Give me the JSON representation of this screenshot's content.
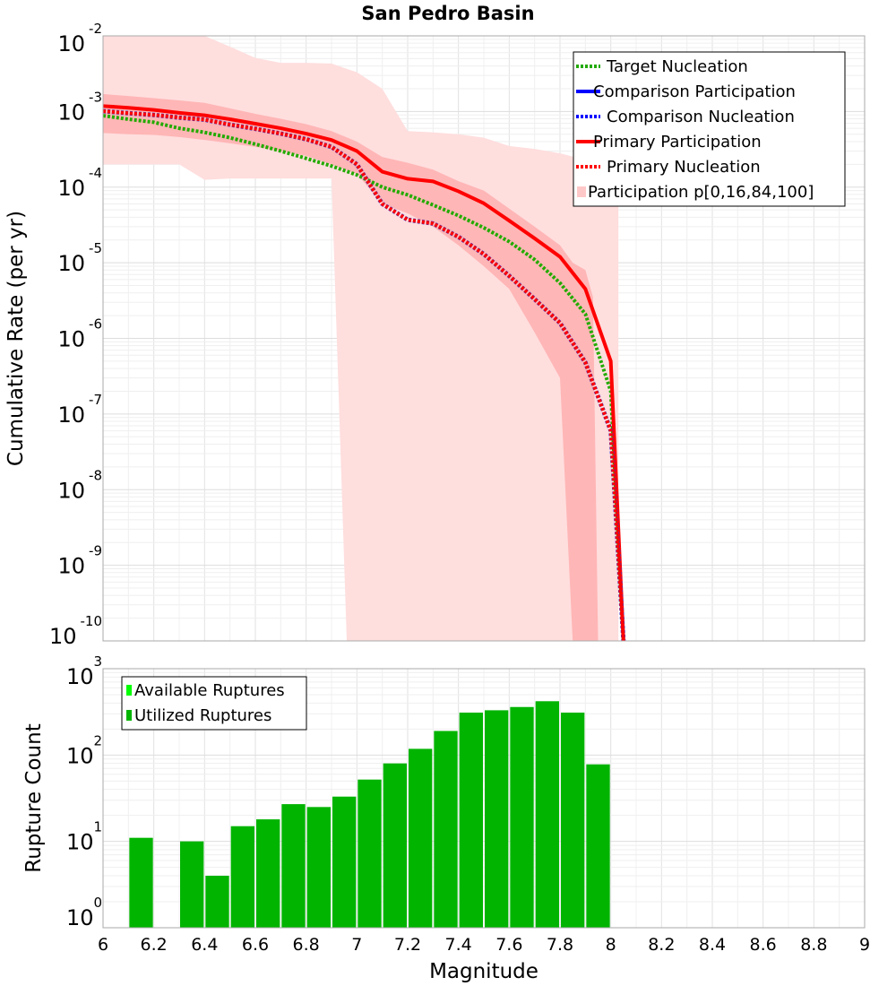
{
  "title": "San Pedro Basin",
  "chart_data": [
    {
      "type": "line",
      "panel": "top",
      "ylabel": "Cumulative Rate (per yr)",
      "xlim": [
        6,
        9
      ],
      "ylim_log10": [
        -10,
        -2
      ],
      "y_tick_exponents": [
        -2,
        -3,
        -4,
        -5,
        -6,
        -7,
        -8,
        -9,
        -10
      ],
      "y_tick_base": "10",
      "legend_position": "top-right",
      "legend": [
        {
          "label": "Target Nucleation",
          "color": "#22aa00",
          "style": "dotted"
        },
        {
          "label": "Comparison Participation",
          "color": "#0000ff",
          "style": "solid"
        },
        {
          "label": "Comparison Nucleation",
          "color": "#0000ff",
          "style": "dotted"
        },
        {
          "label": "Primary Participation",
          "color": "#ff0000",
          "style": "solid"
        },
        {
          "label": "Primary Nucleation",
          "color": "#ff0000",
          "style": "dotted"
        },
        {
          "label": "Participation p[0,16,84,100]",
          "color": "#ffc8c8",
          "style": "band"
        }
      ],
      "x": [
        6.0,
        6.1,
        6.2,
        6.3,
        6.4,
        6.5,
        6.6,
        6.7,
        6.8,
        6.9,
        7.0,
        7.1,
        7.2,
        7.3,
        7.4,
        7.5,
        7.6,
        7.7,
        7.8,
        7.9,
        8.0,
        8.05
      ],
      "series": [
        {
          "name": "Target Nucleation",
          "color": "#22aa00",
          "style": "dotted",
          "values": [
            0.00088,
            0.00079,
            0.00072,
            0.0006,
            0.00053,
            0.00045,
            0.00037,
            0.0003,
            0.00024,
            0.00019,
            0.000145,
            0.0001,
            7.9e-05,
            5.8e-05,
            4.2e-05,
            2.9e-05,
            1.9e-05,
            1.1e-05,
            5.4e-06,
            2.1e-06,
            2e-07,
            1e-10
          ]
        },
        {
          "name": "Primary Participation",
          "color": "#ff0000",
          "style": "solid",
          "values": [
            0.00118,
            0.00112,
            0.00105,
            0.00096,
            0.00089,
            0.00079,
            0.00069,
            0.0006,
            0.00051,
            0.00042,
            0.0003,
            0.00016,
            0.000129,
            0.000119,
            8.8e-05,
            6.1e-05,
            3.6e-05,
            2.1e-05,
            1.2e-05,
            4.5e-06,
            5e-07,
            1e-10
          ]
        },
        {
          "name": "Primary Nucleation",
          "color": "#ff0000",
          "style": "dotted",
          "outline": "#3333cc",
          "values": [
            0.00101,
            0.00095,
            0.0009,
            0.00083,
            0.00078,
            0.00067,
            0.00059,
            0.00051,
            0.00043,
            0.00034,
            0.0002,
            6e-05,
            3.7e-05,
            3.3e-05,
            2.2e-05,
            1.3e-05,
            6.7e-06,
            3.3e-06,
            1.6e-06,
            4.8e-07,
            6e-08,
            1e-10
          ]
        }
      ],
      "bands": [
        {
          "name": "p0-p100",
          "color": "#ffdede",
          "x": [
            6.0,
            6.1,
            6.2,
            6.3,
            6.4,
            6.5,
            6.6,
            6.7,
            6.8,
            6.9,
            6.9,
            6.95,
            6.97
          ],
          "upper": [
            0.01,
            0.01,
            0.01,
            0.01,
            0.01,
            0.0072,
            0.0051,
            0.0044,
            0.0041,
            0.0042,
            0.0042,
            0.0042,
            0.0042
          ],
          "lower": [
            0.0002,
            0.0002,
            0.0002,
            0.0002,
            0.000125,
            0.00013,
            0.00013,
            0.00013,
            0.00013,
            0.00013,
            0.00013,
            1e-10,
            1e-10
          ],
          "x_full": [
            6.0,
            6.1,
            6.2,
            6.3,
            6.4,
            6.5,
            6.6,
            6.7,
            6.8,
            6.9,
            7.0,
            7.1,
            7.2,
            7.3,
            7.4,
            7.5,
            7.6,
            7.7,
            7.8,
            7.9,
            8.0,
            8.03
          ],
          "upper_full": [
            0.01,
            0.01,
            0.01,
            0.01,
            0.01,
            0.0072,
            0.0051,
            0.0044,
            0.0044,
            0.0043,
            0.0033,
            0.002,
            0.00055,
            0.00053,
            0.0005,
            0.00045,
            0.00035,
            0.00032,
            0.00028,
            0.00023,
            0.0002,
            0.00017
          ],
          "lower_knots": [
            [
              6.0,
              0.0002
            ],
            [
              6.1,
              0.0002
            ],
            [
              6.2,
              0.0002
            ],
            [
              6.3,
              0.0002
            ],
            [
              6.4,
              0.000125
            ],
            [
              6.5,
              0.00013
            ],
            [
              6.9,
              0.00013
            ],
            [
              6.96,
              1e-10
            ]
          ]
        },
        {
          "name": "p16-p84",
          "color": "#ffb6b6",
          "x": [
            6.0,
            6.1,
            6.2,
            6.3,
            6.4,
            6.5,
            6.6,
            6.7,
            6.8,
            6.9,
            7.0,
            7.1,
            7.2,
            7.3,
            7.4,
            7.5,
            7.6,
            7.7,
            7.8,
            7.85,
            7.9,
            7.93,
            7.95
          ],
          "upper": [
            0.0017,
            0.0016,
            0.0015,
            0.0014,
            0.0013,
            0.0011,
            0.00093,
            0.0008,
            0.00068,
            0.00055,
            0.0004,
            0.00025,
            0.00021,
            0.00017,
            0.00012,
            9e-05,
            5.2e-05,
            3e-05,
            1.7e-05,
            1e-05,
            8e-06,
            3.5e-06,
            1e-10
          ],
          "lower": [
            0.00052,
            0.0005,
            0.00049,
            0.00046,
            0.00042,
            0.00038,
            0.00034,
            0.0003,
            0.00026,
            0.0002,
            0.00015,
            6e-05,
            4.5e-05,
            3e-05,
            1.7e-05,
            9e-06,
            4.5e-06,
            1.2e-06,
            3e-07,
            1e-10,
            1e-10,
            1e-10,
            1e-10
          ]
        }
      ]
    },
    {
      "type": "bar",
      "panel": "bottom",
      "xlabel": "Magnitude",
      "ylabel": "Rupture Count",
      "xlim": [
        6,
        9
      ],
      "ylim_log10": [
        0,
        3
      ],
      "y_tick_exponents": [
        3,
        2,
        1,
        0
      ],
      "y_tick_base": "10",
      "x_ticks": [
        "6",
        "6.2",
        "6.4",
        "6.6",
        "6.8",
        "7",
        "7.2",
        "7.4",
        "7.6",
        "7.8",
        "8",
        "8.2",
        "8.4",
        "8.6",
        "8.8",
        "9"
      ],
      "legend_position": "top-left",
      "legend": [
        {
          "label": "Available Ruptures",
          "color": "#00ff00"
        },
        {
          "label": "Utilized Ruptures",
          "color": "#00b400"
        }
      ],
      "bar_centers": [
        6.15,
        6.25,
        6.35,
        6.45,
        6.55,
        6.65,
        6.75,
        6.85,
        6.95,
        7.05,
        7.15,
        7.25,
        7.35,
        7.45,
        7.55,
        7.65,
        7.75,
        7.85,
        7.95
      ],
      "values": [
        11,
        0,
        10,
        4,
        15,
        18,
        27,
        25,
        33,
        52,
        80,
        118,
        190,
        310,
        330,
        360,
        420,
        310,
        78
      ],
      "bar_color": "#00b400"
    }
  ]
}
